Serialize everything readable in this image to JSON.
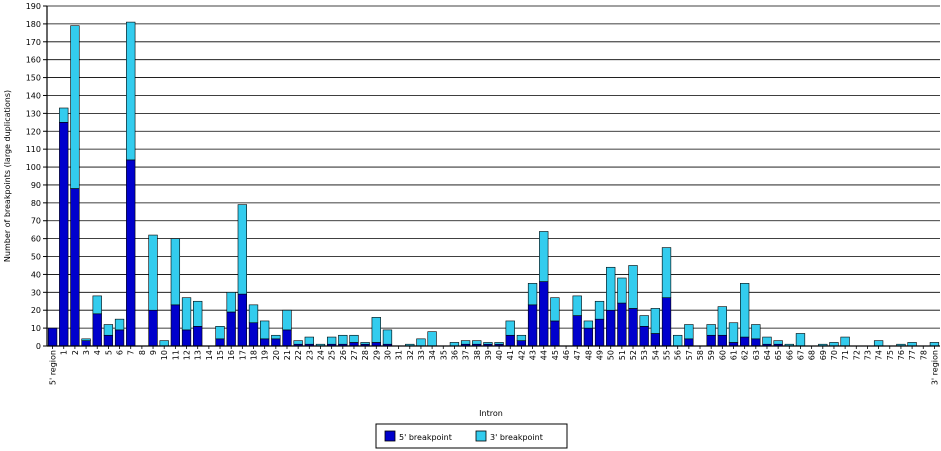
{
  "chart_data": {
    "type": "bar",
    "stacked": true,
    "title": "",
    "xlabel": "Intron",
    "ylabel": "Number of breakpoints (large duplications)",
    "ylim": [
      0,
      190
    ],
    "ytick_step": 10,
    "grid": true,
    "legend_position": "bottom-center",
    "categories": [
      "5' region",
      "1",
      "2",
      "3",
      "4",
      "5",
      "6",
      "7",
      "8",
      "9",
      "10",
      "11",
      "12",
      "13",
      "14",
      "15",
      "16",
      "17",
      "18",
      "19",
      "20",
      "21",
      "22",
      "23",
      "24",
      "25",
      "26",
      "27",
      "28",
      "29",
      "30",
      "31",
      "32",
      "33",
      "34",
      "35",
      "36",
      "37",
      "38",
      "39",
      "40",
      "41",
      "42",
      "43",
      "44",
      "45",
      "46",
      "47",
      "48",
      "49",
      "50",
      "51",
      "52",
      "53",
      "54",
      "55",
      "56",
      "57",
      "58",
      "59",
      "60",
      "61",
      "62",
      "63",
      "64",
      "65",
      "66",
      "67",
      "68",
      "69",
      "70",
      "71",
      "72",
      "73",
      "74",
      "75",
      "76",
      "77",
      "78",
      "3' region"
    ],
    "series": [
      {
        "name": "5' breakpoint",
        "color": "#0000cc",
        "values": [
          10,
          125,
          88,
          3,
          18,
          6,
          9,
          104,
          0,
          20,
          0,
          23,
          9,
          11,
          0,
          4,
          19,
          29,
          13,
          4,
          4,
          9,
          1,
          1,
          0,
          1,
          1,
          2,
          1,
          2,
          1,
          0,
          0,
          0,
          0,
          0,
          0,
          1,
          1,
          1,
          1,
          6,
          3,
          23,
          36,
          14,
          0,
          17,
          10,
          15,
          20,
          24,
          21,
          11,
          7,
          27,
          0,
          4,
          0,
          6,
          6,
          2,
          5,
          4,
          1,
          1,
          0,
          0,
          0,
          0,
          0,
          0,
          0,
          0,
          0,
          0,
          0,
          0,
          0,
          0
        ]
      },
      {
        "name": "3' breakpoint",
        "color": "#33ccee",
        "values": [
          0,
          8,
          91,
          1,
          10,
          6,
          6,
          77,
          0,
          42,
          3,
          37,
          18,
          14,
          0,
          7,
          11,
          50,
          10,
          10,
          2,
          11,
          2,
          4,
          1,
          4,
          5,
          4,
          1,
          14,
          8,
          0,
          1,
          4,
          8,
          0,
          2,
          2,
          2,
          1,
          1,
          8,
          3,
          12,
          28,
          13,
          0,
          11,
          4,
          10,
          24,
          14,
          24,
          6,
          14,
          28,
          6,
          8,
          0,
          6,
          16,
          11,
          30,
          8,
          4,
          2,
          1,
          7,
          0,
          1,
          2,
          5,
          0,
          0,
          3,
          0,
          1,
          2,
          0,
          2
        ]
      }
    ]
  }
}
